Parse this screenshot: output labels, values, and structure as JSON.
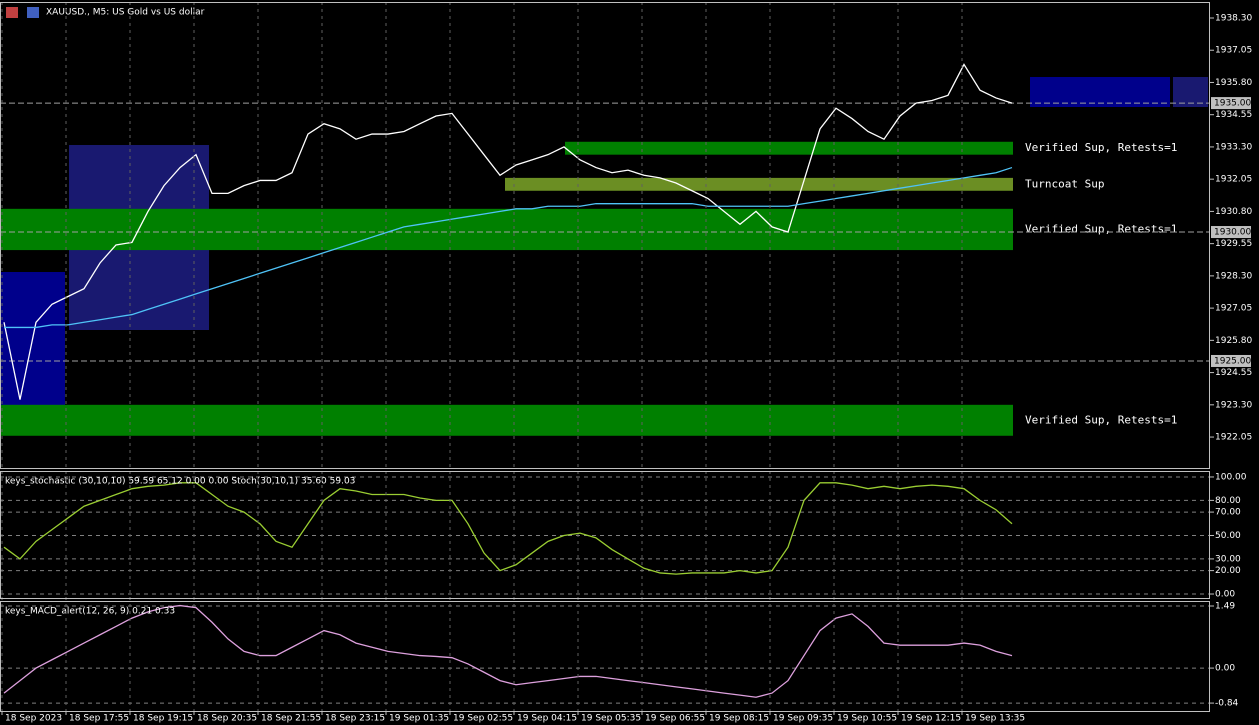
{
  "chart_data": [
    {
      "type": "line",
      "title": "XAUUSD., M5: US Gold vs US dollar",
      "ylim": [
        1920.85,
        1938.92
      ],
      "yticks": [
        {
          "value": 1938.3,
          "label": "1938.30"
        },
        {
          "value": 1937.05,
          "label": "1937.05"
        },
        {
          "value": 1935.8,
          "label": "1935.80"
        },
        {
          "value": 1934.55,
          "label": "1934.55"
        },
        {
          "value": 1933.3,
          "label": "1933.30"
        },
        {
          "value": 1932.05,
          "label": "1932.05"
        },
        {
          "value": 1930.8,
          "label": "1930.80"
        },
        {
          "value": 1929.55,
          "label": "1929.55"
        },
        {
          "value": 1928.3,
          "label": "1928.30"
        },
        {
          "value": 1927.05,
          "label": "1927.05"
        },
        {
          "value": 1925.8,
          "label": "1925.80"
        },
        {
          "value": 1924.55,
          "label": "1924.55"
        },
        {
          "value": 1923.3,
          "label": "1923.30"
        },
        {
          "value": 1922.05,
          "label": "1922.05"
        }
      ],
      "price_lines": [
        {
          "value": 1935,
          "label": "1935.00"
        },
        {
          "value": 1930,
          "label": "1930.00"
        },
        {
          "value": 1925,
          "label": "1925.00"
        }
      ],
      "zones": [
        {
          "label": "Verified Sup, Retests=1",
          "low": 1933.0,
          "high": 1933.5,
          "color": "#008000"
        },
        {
          "label": "Turncoat Sup",
          "low": 1931.6,
          "high": 1932.1,
          "color": "#6b8e23"
        },
        {
          "label": "Verified Sup, Retests=1",
          "low": 1929.3,
          "high": 1930.9,
          "color": "#008000"
        },
        {
          "label": "Verified Sup, Retests=1",
          "low": 1922.1,
          "high": 1923.3,
          "color": "#008000"
        }
      ],
      "series": [
        {
          "color": "#ffffff",
          "values": [
            1926.5,
            1923.5,
            1926.5,
            1927.2,
            1927.5,
            1927.8,
            1928.8,
            1929.5,
            1929.6,
            1930.8,
            1931.8,
            1932.5,
            1933.0,
            1931.5,
            1931.5,
            1931.8,
            1932.0,
            1932.0,
            1932.3,
            1933.8,
            1934.2,
            1934.0,
            1933.6,
            1933.8,
            1933.8,
            1933.9,
            1934.2,
            1934.5,
            1934.6,
            1933.8,
            1933.0,
            1932.2,
            1932.6,
            1932.8,
            1933.0,
            1933.3,
            1932.8,
            1932.5,
            1932.3,
            1932.4,
            1932.2,
            1932.1,
            1931.9,
            1931.6,
            1931.3,
            1930.8,
            1930.3,
            1930.8,
            1930.2,
            1930.0,
            1932.0,
            1934.0,
            1934.8,
            1934.4,
            1933.9,
            1933.6,
            1934.5,
            1935.0,
            1935.1,
            1935.3,
            1936.5,
            1935.5,
            1935.2,
            1935.0
          ]
        },
        {
          "color": "#4fc3f7",
          "values": [
            1926.3,
            1926.3,
            1926.3,
            1926.4,
            1926.4,
            1926.5,
            1926.6,
            1926.7,
            1926.8,
            1927.0,
            1927.2,
            1927.4,
            1927.6,
            1927.8,
            1928.0,
            1928.2,
            1928.4,
            1928.6,
            1928.8,
            1929.0,
            1929.2,
            1929.4,
            1929.6,
            1929.8,
            1930.0,
            1930.2,
            1930.3,
            1930.4,
            1930.5,
            1930.6,
            1930.7,
            1930.8,
            1930.9,
            1930.9,
            1931.0,
            1931.0,
            1931.0,
            1931.1,
            1931.1,
            1931.1,
            1931.1,
            1931.1,
            1931.1,
            1931.1,
            1931.0,
            1931.0,
            1931.0,
            1931.0,
            1931.0,
            1931.0,
            1931.1,
            1931.2,
            1931.3,
            1931.4,
            1931.5,
            1931.6,
            1931.7,
            1931.8,
            1931.9,
            1932.0,
            1932.1,
            1932.2,
            1932.3,
            1932.5
          ]
        }
      ]
    },
    {
      "type": "line",
      "title": "keys_stochastic (30,10,10) 59.59 65.12 0.00 0.00 Stoch(30,10,1) 35.60 59.03",
      "ylim": [
        -3.4,
        105.1
      ],
      "grid": true,
      "yticks": [
        {
          "value": 100,
          "label": "100.00"
        },
        {
          "value": 80,
          "label": "80.00"
        },
        {
          "value": 70,
          "label": "70.00"
        },
        {
          "value": 50,
          "label": "50.00"
        },
        {
          "value": 30,
          "label": "30.00"
        },
        {
          "value": 20,
          "label": "20.00"
        },
        {
          "value": 0,
          "label": "0.00"
        }
      ],
      "series": [
        {
          "color": "#9acd32",
          "values": [
            40,
            30,
            45,
            55,
            65,
            75,
            80,
            85,
            90,
            92,
            93,
            95,
            95,
            85,
            75,
            70,
            60,
            45,
            40,
            60,
            80,
            90,
            88,
            85,
            85,
            85,
            82,
            80,
            80,
            60,
            35,
            20,
            25,
            35,
            45,
            50,
            52,
            48,
            38,
            30,
            22,
            18,
            17,
            18,
            18,
            18,
            20,
            18,
            20,
            40,
            80,
            95,
            95,
            93,
            90,
            92,
            90,
            92,
            93,
            92,
            90,
            80,
            72,
            60
          ]
        }
      ]
    },
    {
      "type": "line",
      "title": "keys_MACD_alert(12, 26, 9) 0.21 0.33",
      "ylim": [
        -1.03,
        1.61
      ],
      "grid": true,
      "yticks": [
        1.49,
        {
          "value": 0,
          "label": "0.00"
        },
        -0.84
      ],
      "categories": [
        "18 Sep 2023",
        null,
        null,
        null,
        "18 Sep 17:55",
        null,
        null,
        null,
        "18 Sep 19:15",
        null,
        null,
        null,
        "18 Sep 20:35",
        null,
        null,
        null,
        "18 Sep 21:55",
        null,
        null,
        null,
        "18 Sep 23:15",
        null,
        null,
        null,
        "19 Sep 01:35",
        null,
        null,
        null,
        "19 Sep 02:55",
        null,
        null,
        null,
        "19 Sep 04:15",
        null,
        null,
        null,
        "19 Sep 05:35",
        null,
        null,
        null,
        "19 Sep 06:55",
        null,
        null,
        null,
        "19 Sep 08:15",
        null,
        null,
        null,
        "19 Sep 09:35",
        null,
        null,
        null,
        "19 Sep 10:55",
        null,
        null,
        null,
        "19 Sep 12:15",
        null,
        null,
        null,
        "19 Sep 13:35",
        null,
        null,
        null
      ],
      "series": [
        {
          "color": "#dda0dd",
          "values": [
            -0.6,
            -0.3,
            0,
            0.2,
            0.4,
            0.6,
            0.8,
            1.0,
            1.2,
            1.35,
            1.45,
            1.5,
            1.45,
            1.1,
            0.7,
            0.4,
            0.3,
            0.3,
            0.5,
            0.7,
            0.9,
            0.8,
            0.6,
            0.5,
            0.4,
            0.35,
            0.3,
            0.28,
            0.25,
            0.1,
            -0.1,
            -0.3,
            -0.4,
            -0.35,
            -0.3,
            -0.25,
            -0.2,
            -0.2,
            -0.25,
            -0.3,
            -0.35,
            -0.4,
            -0.45,
            -0.5,
            -0.55,
            -0.6,
            -0.65,
            -0.7,
            -0.6,
            -0.3,
            0.3,
            0.9,
            1.2,
            1.3,
            1.0,
            0.6,
            0.55,
            0.55,
            0.55,
            0.55,
            0.6,
            0.55,
            0.4,
            0.3
          ]
        }
      ]
    }
  ]
}
